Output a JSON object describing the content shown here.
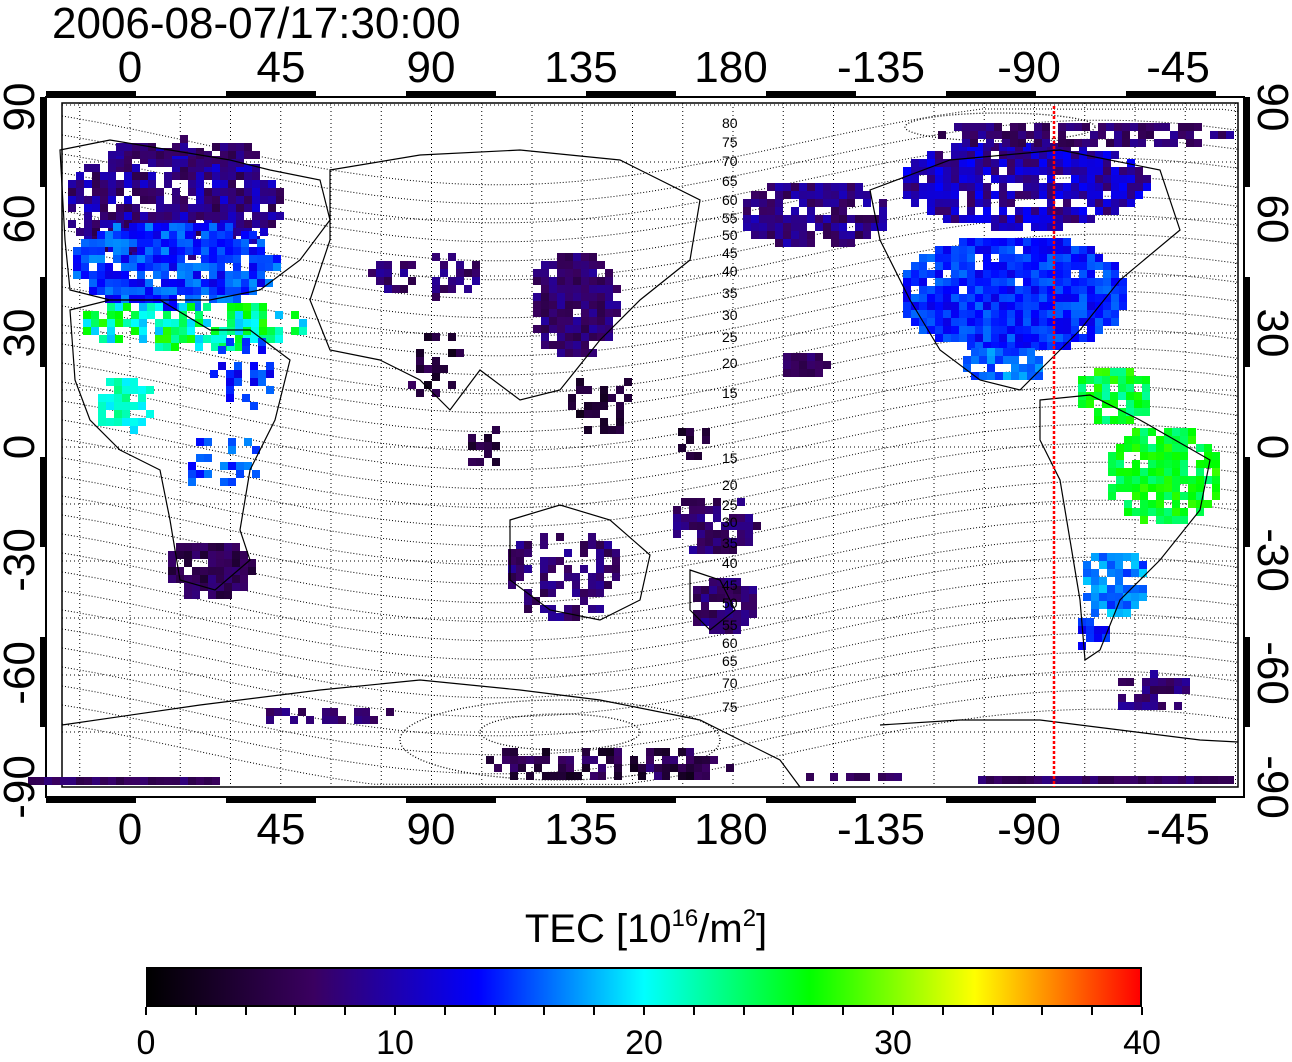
{
  "title": "2006-08-07/17:30:00",
  "map": {
    "lon_ticks_top": [
      "0",
      "45",
      "90",
      "135",
      "180",
      "-135",
      "-90",
      "-45"
    ],
    "lon_ticks_bottom": [
      "0",
      "45",
      "90",
      "135",
      "180",
      "-135",
      "-90",
      "-45"
    ],
    "lat_ticks_left": [
      "90",
      "60",
      "30",
      "0",
      "-30",
      "-60",
      "-90"
    ],
    "lat_ticks_right": [
      "90",
      "60",
      "30",
      "0",
      "-30",
      "-60",
      "-90"
    ],
    "contour_labels": [
      "80",
      "75",
      "70",
      "65",
      "60",
      "55",
      "50",
      "45",
      "40",
      "35",
      "30",
      "25",
      "20",
      "15",
      "15",
      "20",
      "25",
      "30",
      "35",
      "40",
      "45",
      "50",
      "55",
      "60",
      "65",
      "70",
      "75"
    ],
    "marker_line_color": "#ff0000",
    "marker_longitude": -80
  },
  "colorbar": {
    "title": "TEC  [10",
    "title_sup": "16",
    "title_mid": "/m",
    "title_sup2": "2",
    "title_end": "]",
    "ticks": [
      "0",
      "10",
      "20",
      "30",
      "40"
    ],
    "min": 0,
    "max": 40,
    "colors": [
      "#000000",
      "#3a0060",
      "#0000ff",
      "#00ffff",
      "#00ff00",
      "#ffff00",
      "#ff0000"
    ]
  }
}
